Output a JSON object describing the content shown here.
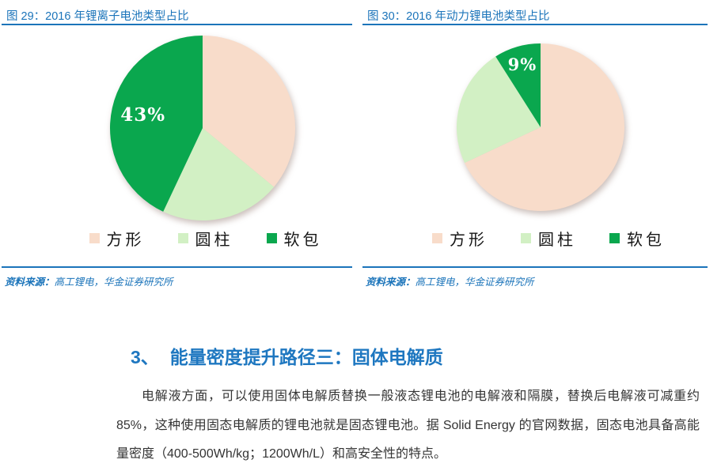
{
  "page": {
    "accent_blue": "#1b74ba",
    "body_text_color": "#343434"
  },
  "figures": [
    {
      "title": "图 29：2016 年锂离子电池类型占比",
      "source_prefix": "资料来源：",
      "source": "高工锂电，华金证券研究所"
    },
    {
      "title": "图 30：2016 年动力锂电池类型占比",
      "source_prefix": "资料来源：",
      "source": "高工锂电，华金证券研究所"
    }
  ],
  "chart_data": [
    {
      "type": "pie",
      "title": "2016 年锂离子电池类型占比",
      "categories": [
        "方形",
        "圆柱",
        "软包"
      ],
      "values": [
        36,
        21,
        43
      ],
      "unit": "%",
      "colors": [
        "#f8dcca",
        "#d2f0c4",
        "#0aa74e"
      ],
      "start_angle_deg": 0,
      "direction": "clockwise",
      "data_labels": [
        {
          "category": "软包",
          "text": "43%",
          "r_ratio": 0.66
        }
      ],
      "label_color": "#ffffff",
      "legend_position": "bottom"
    },
    {
      "type": "pie",
      "title": "2016 年动力锂电池类型占比",
      "categories": [
        "方形",
        "圆柱",
        "软包"
      ],
      "values": [
        68,
        23,
        9
      ],
      "unit": "%",
      "colors": [
        "#f8dcca",
        "#d2f0c4",
        "#0aa74e"
      ],
      "start_angle_deg": 0,
      "direction": "clockwise",
      "data_labels": [
        {
          "category": "软包",
          "text": "9%",
          "r_ratio": 0.78
        }
      ],
      "label_color": "#ffffff",
      "legend_position": "bottom"
    }
  ],
  "section": {
    "heading_number": "3、",
    "heading_title": "能量密度提升路径三：固体电解质",
    "paragraph": "电解液方面，可以使用固体电解质替换一般液态锂电池的电解液和隔膜，替换后电解液可减重约 85%，这种使用固态电解质的锂电池就是固态锂电池。据 Solid Energy 的官网数据，固态电池具备高能量密度（400-500Wh/kg；1200Wh/L）和高安全性的特点。"
  }
}
